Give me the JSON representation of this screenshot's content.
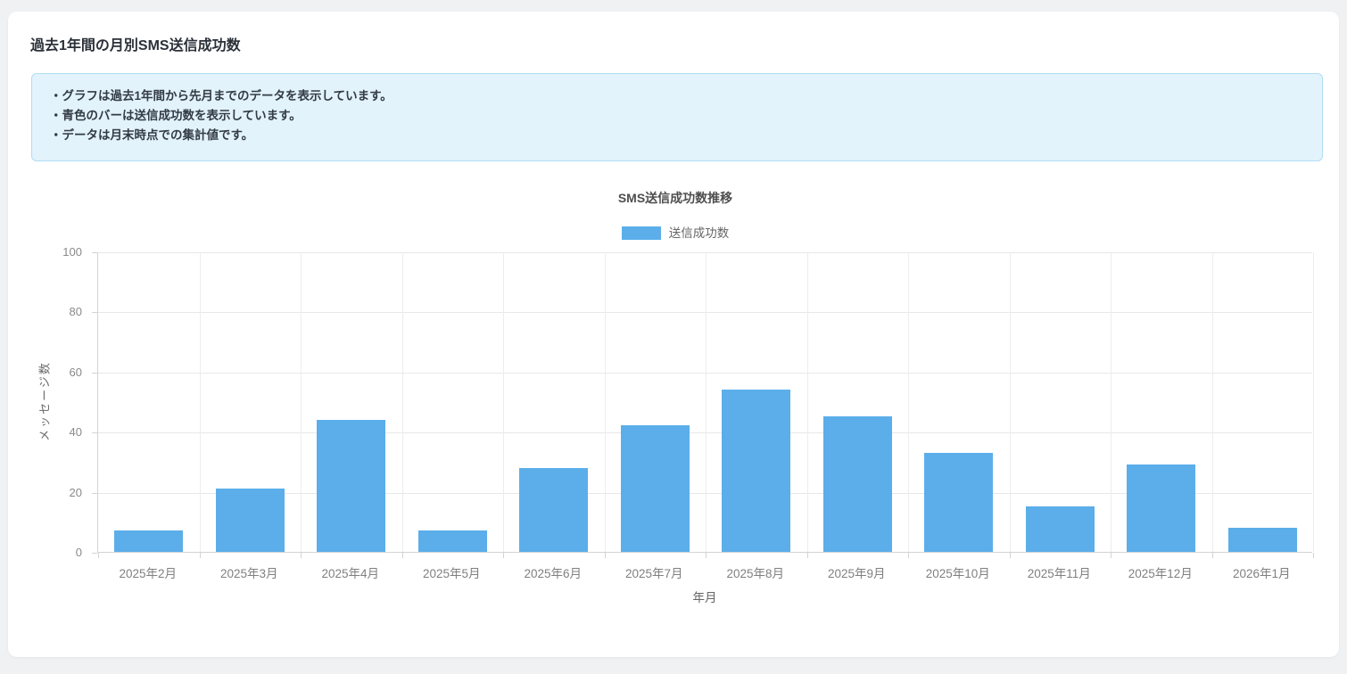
{
  "header": {
    "title": "過去1年間の月別SMS送信成功数"
  },
  "info_box": {
    "items": [
      "・グラフは過去1年間から先月までのデータを表示しています。",
      "・青色のバーは送信成功数を表示しています。",
      "・データは月末時点での集計値です。"
    ]
  },
  "theme": {
    "page_background": "#eff1f3",
    "card_background": "#ffffff",
    "info_box_background": "#e2f3fb",
    "info_box_border": "#b0def2",
    "bar_color": "#5baeea",
    "grid_color": "#e8e8e8",
    "axis_color": "#d3d3d3",
    "tick_label_color": "#8a8a8a"
  },
  "chart_data": {
    "type": "bar",
    "title": "SMS送信成功数推移",
    "xlabel": "年月",
    "ylabel": "メッセージ数",
    "ylim": [
      0,
      100
    ],
    "yticks": [
      0,
      20,
      40,
      60,
      80,
      100
    ],
    "grid": true,
    "legend_position": "top",
    "categories": [
      "2025年2月",
      "2025年3月",
      "2025年4月",
      "2025年5月",
      "2025年6月",
      "2025年7月",
      "2025年8月",
      "2025年9月",
      "2025年10月",
      "2025年11月",
      "2025年12月",
      "2026年1月"
    ],
    "series": [
      {
        "name": "送信成功数",
        "color": "#5baeea",
        "values": [
          7,
          21,
          44,
          7,
          28,
          42,
          54,
          45,
          33,
          15,
          29,
          8
        ]
      }
    ]
  }
}
